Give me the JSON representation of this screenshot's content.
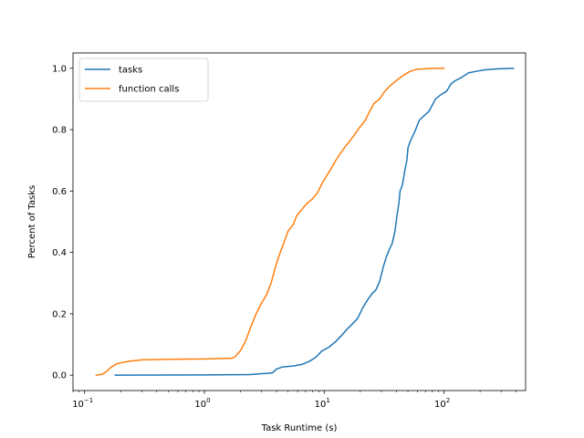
{
  "chart_data": {
    "type": "line",
    "xscale": "log",
    "xlabel": "Task Runtime (s)",
    "ylabel": "Percent of Tasks",
    "xlim": [
      0.08,
      480
    ],
    "ylim": [
      -0.05,
      1.05
    ],
    "legend_position": "top-left",
    "x_ticks": [
      {
        "value": 0.1,
        "base": "10",
        "exp": "−1"
      },
      {
        "value": 1,
        "base": "10",
        "exp": "0"
      },
      {
        "value": 10,
        "base": "10",
        "exp": "1"
      },
      {
        "value": 100,
        "base": "10",
        "exp": "2"
      }
    ],
    "y_ticks": [
      {
        "value": 0.0,
        "label": "0.0"
      },
      {
        "value": 0.2,
        "label": "0.2"
      },
      {
        "value": 0.4,
        "label": "0.4"
      },
      {
        "value": 0.6,
        "label": "0.6"
      },
      {
        "value": 0.8,
        "label": "0.8"
      },
      {
        "value": 1.0,
        "label": "1.0"
      }
    ],
    "series": [
      {
        "name": "tasks",
        "color": "#1f77b4",
        "points": [
          [
            0.18,
            0.0
          ],
          [
            1.0,
            0.001
          ],
          [
            2.4,
            0.002
          ],
          [
            3.0,
            0.005
          ],
          [
            3.4,
            0.006
          ],
          [
            3.7,
            0.008
          ],
          [
            4.0,
            0.02
          ],
          [
            4.5,
            0.027
          ],
          [
            5.5,
            0.03
          ],
          [
            6.5,
            0.035
          ],
          [
            7.5,
            0.045
          ],
          [
            8.5,
            0.058
          ],
          [
            9.5,
            0.078
          ],
          [
            11,
            0.092
          ],
          [
            12.5,
            0.11
          ],
          [
            14,
            0.13
          ],
          [
            15.5,
            0.15
          ],
          [
            17,
            0.165
          ],
          [
            19,
            0.185
          ],
          [
            21,
            0.22
          ],
          [
            23,
            0.245
          ],
          [
            25,
            0.265
          ],
          [
            27,
            0.278
          ],
          [
            29,
            0.305
          ],
          [
            31,
            0.35
          ],
          [
            33,
            0.385
          ],
          [
            35,
            0.41
          ],
          [
            37,
            0.43
          ],
          [
            39,
            0.47
          ],
          [
            40.5,
            0.52
          ],
          [
            42,
            0.56
          ],
          [
            43,
            0.6
          ],
          [
            45,
            0.62
          ],
          [
            47,
            0.665
          ],
          [
            49,
            0.7
          ],
          [
            50,
            0.74
          ],
          [
            52,
            0.76
          ],
          [
            55,
            0.78
          ],
          [
            58,
            0.8
          ],
          [
            62,
            0.83
          ],
          [
            68,
            0.845
          ],
          [
            75,
            0.86
          ],
          [
            85,
            0.9
          ],
          [
            95,
            0.915
          ],
          [
            105,
            0.925
          ],
          [
            115,
            0.95
          ],
          [
            125,
            0.96
          ],
          [
            140,
            0.97
          ],
          [
            160,
            0.985
          ],
          [
            185,
            0.99
          ],
          [
            220,
            0.995
          ],
          [
            280,
            0.998
          ],
          [
            380,
            1.0
          ]
        ]
      },
      {
        "name": "function calls",
        "color": "#ff7f0e",
        "points": [
          [
            0.125,
            0.0
          ],
          [
            0.14,
            0.003
          ],
          [
            0.15,
            0.01
          ],
          [
            0.165,
            0.025
          ],
          [
            0.185,
            0.037
          ],
          [
            0.21,
            0.042
          ],
          [
            0.24,
            0.046
          ],
          [
            0.3,
            0.05
          ],
          [
            0.5,
            0.052
          ],
          [
            1.0,
            0.053
          ],
          [
            1.7,
            0.055
          ],
          [
            1.8,
            0.06
          ],
          [
            2.0,
            0.08
          ],
          [
            2.2,
            0.11
          ],
          [
            2.4,
            0.15
          ],
          [
            2.7,
            0.2
          ],
          [
            3.0,
            0.235
          ],
          [
            3.3,
            0.262
          ],
          [
            3.6,
            0.3
          ],
          [
            3.9,
            0.35
          ],
          [
            4.2,
            0.39
          ],
          [
            4.6,
            0.43
          ],
          [
            5.0,
            0.47
          ],
          [
            5.5,
            0.49
          ],
          [
            5.9,
            0.52
          ],
          [
            6.5,
            0.54
          ],
          [
            7.2,
            0.56
          ],
          [
            8.0,
            0.575
          ],
          [
            8.8,
            0.595
          ],
          [
            9.6,
            0.625
          ],
          [
            10.5,
            0.65
          ],
          [
            11.5,
            0.675
          ],
          [
            12.5,
            0.7
          ],
          [
            13.5,
            0.72
          ],
          [
            15,
            0.745
          ],
          [
            16.5,
            0.765
          ],
          [
            18,
            0.785
          ],
          [
            20,
            0.81
          ],
          [
            22,
            0.83
          ],
          [
            24,
            0.86
          ],
          [
            26,
            0.885
          ],
          [
            29,
            0.9
          ],
          [
            32,
            0.925
          ],
          [
            36,
            0.945
          ],
          [
            40,
            0.96
          ],
          [
            45,
            0.975
          ],
          [
            52,
            0.99
          ],
          [
            60,
            0.997
          ],
          [
            75,
            0.999
          ],
          [
            100,
            1.0
          ]
        ]
      }
    ]
  }
}
